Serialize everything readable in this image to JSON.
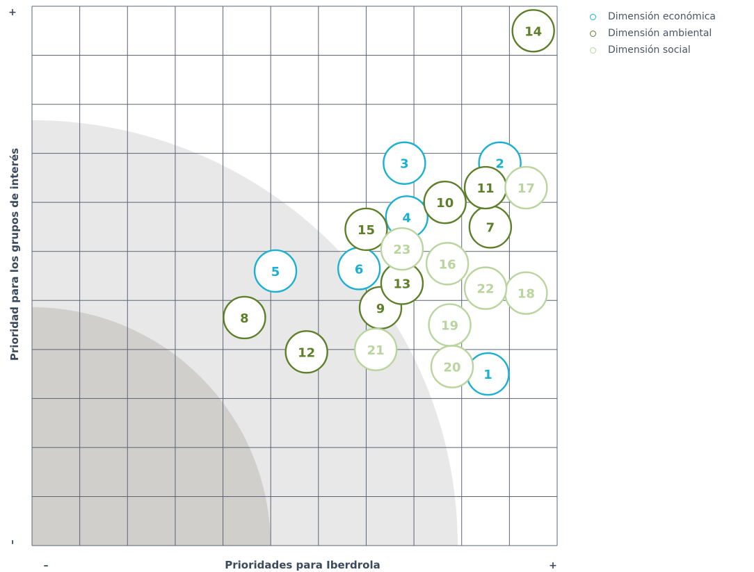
{
  "chart_data": {
    "type": "scatter",
    "xlabel": "Prioridades para Iberdrola",
    "ylabel": "Prioridad para los grupos de interés",
    "x_min_label": "–",
    "x_max_label": "+",
    "y_min_label": "–",
    "y_max_label": "+",
    "xlim": [
      0,
      11
    ],
    "ylim": [
      0,
      11
    ],
    "grid": true,
    "legend_position": "top-right",
    "colors": {
      "economic": "#1ab0d2",
      "environmental": "#5e7f29",
      "social": "#b9d49d",
      "zone_light": "#e8e8e8",
      "zone_dark": "#d0cfcb",
      "grid_line": "#5a6474"
    },
    "series": [
      {
        "key": "economic",
        "name": "Dimensión económica",
        "points": [
          {
            "label": "1",
            "x": 9.55,
            "y": 3.5
          },
          {
            "label": "2",
            "x": 9.8,
            "y": 7.8
          },
          {
            "label": "3",
            "x": 7.8,
            "y": 7.8
          },
          {
            "label": "4",
            "x": 7.85,
            "y": 6.7
          },
          {
            "label": "5",
            "x": 5.1,
            "y": 5.6
          },
          {
            "label": "6",
            "x": 6.85,
            "y": 5.65
          }
        ]
      },
      {
        "key": "environmental",
        "name": "Dimensión ambiental",
        "points": [
          {
            "label": "7",
            "x": 9.6,
            "y": 6.5
          },
          {
            "label": "8",
            "x": 4.45,
            "y": 4.65
          },
          {
            "label": "9",
            "x": 7.3,
            "y": 4.85
          },
          {
            "label": "10",
            "x": 8.65,
            "y": 7.0
          },
          {
            "label": "11",
            "x": 9.5,
            "y": 7.3
          },
          {
            "label": "12",
            "x": 5.75,
            "y": 3.95
          },
          {
            "label": "13",
            "x": 7.75,
            "y": 5.35
          },
          {
            "label": "14",
            "x": 10.5,
            "y": 10.5
          },
          {
            "label": "15",
            "x": 7.0,
            "y": 6.45
          }
        ]
      },
      {
        "key": "social",
        "name": "Dimensión social",
        "points": [
          {
            "label": "16",
            "x": 8.7,
            "y": 5.75
          },
          {
            "label": "17",
            "x": 10.35,
            "y": 7.3
          },
          {
            "label": "18",
            "x": 10.35,
            "y": 5.15
          },
          {
            "label": "19",
            "x": 8.75,
            "y": 4.5
          },
          {
            "label": "20",
            "x": 8.8,
            "y": 3.65
          },
          {
            "label": "21",
            "x": 7.2,
            "y": 4.0
          },
          {
            "label": "22",
            "x": 9.5,
            "y": 5.25
          },
          {
            "label": "23",
            "x": 7.75,
            "y": 6.05
          }
        ]
      }
    ]
  }
}
